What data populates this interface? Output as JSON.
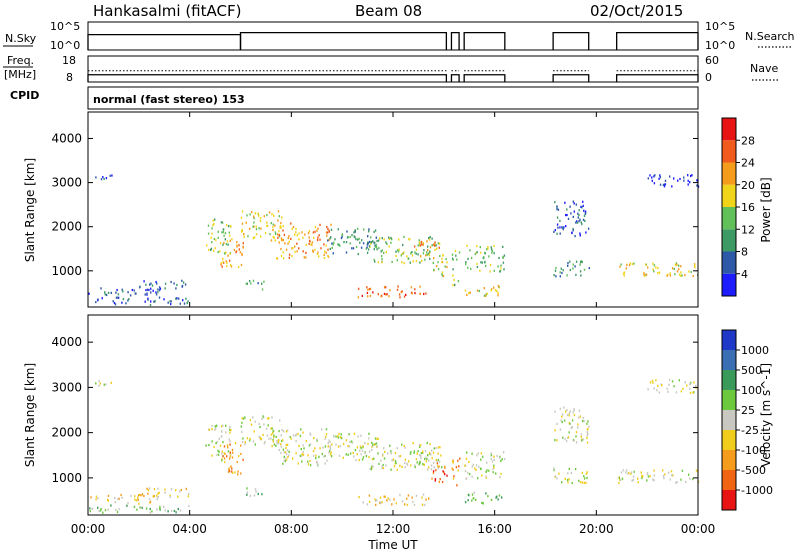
{
  "header": {
    "station": "Hankasalmi (fitACF)",
    "beam": "Beam 08",
    "date": "02/Oct/2015"
  },
  "nsky_panel": {
    "left_label": "N.Sky",
    "left_ticks": [
      "10^5",
      "10^0"
    ],
    "right_label": "N.Search",
    "right_ticks": [
      "10^5",
      "10^0"
    ]
  },
  "freq_panel": {
    "left_label_line1": "Freq.",
    "left_label_line2": "[MHz]",
    "left_ticks": [
      "18",
      "8"
    ],
    "right_label": "Nave",
    "right_ticks": [
      "60",
      "0"
    ]
  },
  "cpid": {
    "label": "CPID",
    "text": "normal (fast stereo) 153"
  },
  "time_axis": {
    "label": "Time UT",
    "ticks": [
      "00:00",
      "04:00",
      "08:00",
      "12:00",
      "16:00",
      "20:00",
      "00:00"
    ],
    "tick_hours": [
      0,
      4,
      8,
      12,
      16,
      20,
      24
    ]
  },
  "range_axis": {
    "label": "Slant Range [km]",
    "ticks": [
      "1000",
      "2000",
      "3000",
      "4000"
    ],
    "tick_values": [
      1000,
      2000,
      3000,
      4000
    ],
    "min": 180,
    "max": 4600
  },
  "power_colorbar": {
    "label": "Power [dB]",
    "ticks": [
      "4",
      "8",
      "12",
      "16",
      "20",
      "24",
      "28"
    ],
    "colors": [
      "#1c1cff",
      "#2e58a8",
      "#3d9a64",
      "#62c05a",
      "#f0d419",
      "#f59c1c",
      "#f05a1c",
      "#e81414"
    ]
  },
  "velocity_colorbar": {
    "label": "Velocity [m s^-1]",
    "ticks": [
      "1000",
      "500",
      "100",
      "25",
      "-25",
      "-100",
      "-500",
      "-1000"
    ],
    "colors": [
      "#2038c8",
      "#3a6fb4",
      "#3a9a5a",
      "#6cc83c",
      "#c8c8c0",
      "#f0cc1c",
      "#f59c1c",
      "#f06414",
      "#e81414"
    ]
  },
  "chart_data": {
    "type": "heatmap",
    "title": "Hankasalmi (fitACF) Beam 08 02/Oct/2015",
    "xlabel": "Time UT",
    "xlim": [
      0,
      24
    ],
    "ylim": [
      180,
      4600
    ],
    "nsky_trace": [
      {
        "t0": 0.0,
        "t1": 6.0,
        "level": 0.55
      },
      {
        "t0": 6.0,
        "t1": 14.1,
        "level": 0.62
      },
      {
        "t0": 14.3,
        "t1": 14.6,
        "level": 0.62
      },
      {
        "t0": 14.8,
        "t1": 16.4,
        "level": 0.62
      },
      {
        "t0": 18.3,
        "t1": 19.7,
        "level": 0.62
      },
      {
        "t0": 20.8,
        "t1": 24.0,
        "level": 0.62
      }
    ],
    "freq_trace": [
      {
        "t0": 0.0,
        "t1": 14.1,
        "mhz": 10.8
      },
      {
        "t0": 14.3,
        "t1": 14.6,
        "mhz": 10.8
      },
      {
        "t0": 14.8,
        "t1": 16.4,
        "mhz": 10.8
      },
      {
        "t0": 18.3,
        "t1": 19.7,
        "mhz": 10.8
      },
      {
        "t0": 20.8,
        "t1": 24.0,
        "mhz": 10.8
      }
    ],
    "scatter_regions": [
      {
        "t0": 0.0,
        "t1": 2.8,
        "r0": 450,
        "r1": 650,
        "power_idx": 1,
        "vel_idx": 5
      },
      {
        "t0": 2.0,
        "t1": 4.1,
        "r0": 600,
        "r1": 800,
        "power_idx": 1,
        "vel_idx": 5
      },
      {
        "t0": 4.6,
        "t1": 5.6,
        "r0": 1400,
        "r1": 2200,
        "power_idx": 3,
        "vel_idx": 4
      },
      {
        "t0": 5.2,
        "t1": 6.1,
        "r0": 1100,
        "r1": 1800,
        "power_idx": 5,
        "vel_idx": 6
      },
      {
        "t0": 6.0,
        "t1": 7.6,
        "r0": 1700,
        "r1": 2400,
        "power_idx": 4,
        "vel_idx": 4
      },
      {
        "t0": 6.1,
        "t1": 6.9,
        "r0": 600,
        "r1": 800,
        "power_idx": 2,
        "vel_idx": 3
      },
      {
        "t0": 7.4,
        "t1": 9.6,
        "r0": 1300,
        "r1": 2100,
        "power_idx": 5,
        "vel_idx": 4
      },
      {
        "t0": 9.4,
        "t1": 11.4,
        "r0": 1400,
        "r1": 2000,
        "power_idx": 2,
        "vel_idx": 4
      },
      {
        "t0": 11.0,
        "t1": 13.9,
        "r0": 1200,
        "r1": 1800,
        "power_idx": 3,
        "vel_idx": 4
      },
      {
        "t0": 12.8,
        "t1": 13.8,
        "r0": 1350,
        "r1": 1700,
        "power_idx": 5,
        "vel_idx": 4
      },
      {
        "t0": 10.6,
        "t1": 13.4,
        "r0": 420,
        "r1": 680,
        "power_idx": 6,
        "vel_idx": 5
      },
      {
        "t0": 13.5,
        "t1": 14.1,
        "r0": 900,
        "r1": 1400,
        "power_idx": 4,
        "vel_idx": 7
      },
      {
        "t0": 14.3,
        "t1": 14.6,
        "r0": 700,
        "r1": 1500,
        "power_idx": 3,
        "vel_idx": 6
      },
      {
        "t0": 14.8,
        "t1": 16.4,
        "r0": 1000,
        "r1": 1600,
        "power_idx": 3,
        "vel_idx": 4
      },
      {
        "t0": 14.8,
        "t1": 16.3,
        "r0": 450,
        "r1": 700,
        "power_idx": 4,
        "vel_idx": 3
      },
      {
        "t0": 18.3,
        "t1": 19.7,
        "r0": 1800,
        "r1": 2600,
        "power_idx": 1,
        "vel_idx": 4
      },
      {
        "t0": 18.3,
        "t1": 19.7,
        "r0": 900,
        "r1": 1250,
        "power_idx": 2,
        "vel_idx": 4
      },
      {
        "t0": 20.8,
        "t1": 24.0,
        "r0": 900,
        "r1": 1200,
        "power_idx": 4,
        "vel_idx": 4
      },
      {
        "t0": 22.0,
        "t1": 24.0,
        "r0": 2900,
        "r1": 3200,
        "power_idx": 0,
        "vel_idx": 4
      },
      {
        "t0": 0.0,
        "t1": 4.0,
        "r0": 250,
        "r1": 420,
        "power_idx": 1,
        "vel_idx": 3
      },
      {
        "t0": 0.2,
        "t1": 1.0,
        "r0": 3050,
        "r1": 3200,
        "power_idx": 1,
        "vel_idx": 4
      }
    ]
  }
}
